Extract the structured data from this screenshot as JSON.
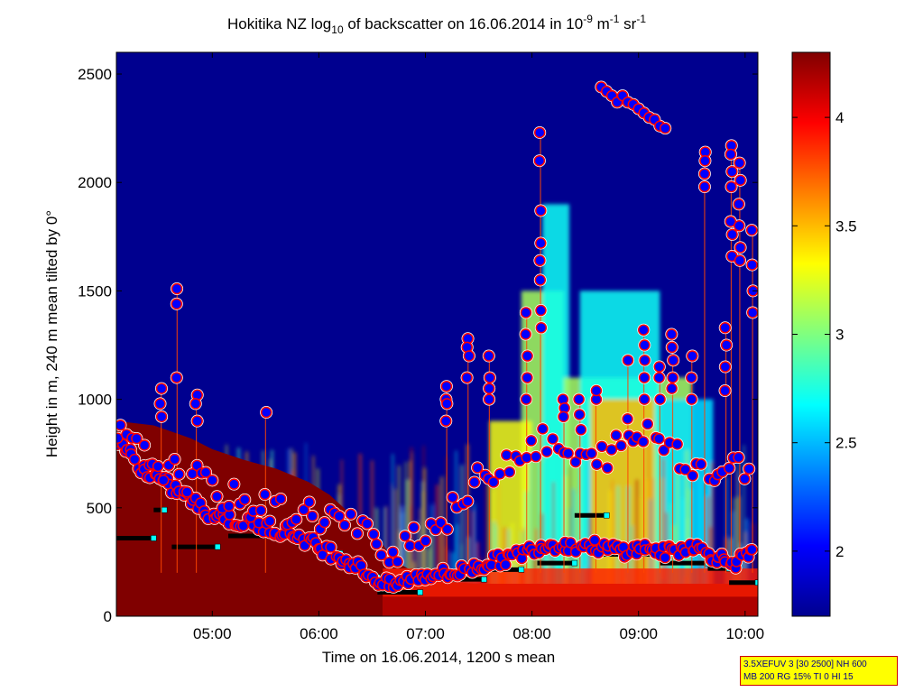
{
  "chart_data": {
    "type": "heatmap",
    "title": {
      "prefix": "Hokitika NZ log",
      "sub": "10",
      "middle": " of backscatter on 16.06.2014 in 10",
      "exp1": "-9",
      "unit1": " m",
      "exp2": "-1",
      "unit2": " sr",
      "exp3": "-1"
    },
    "xlabel": "Time on 16.06.2014, 1200 s mean",
    "ylabel": "Height in m, 240 m mean tilted by 0°",
    "x_ticks": [
      "05:00",
      "06:00",
      "07:00",
      "08:00",
      "09:00",
      "10:00"
    ],
    "x_tick_values": [
      5,
      6,
      7,
      8,
      9,
      10
    ],
    "xlim": [
      4.1,
      10.12
    ],
    "y_ticks": [
      "0",
      "500",
      "1000",
      "1500",
      "2000",
      "2500"
    ],
    "y_tick_values": [
      0,
      500,
      1000,
      1500,
      2000,
      2500
    ],
    "ylim": [
      0,
      2600
    ],
    "colorbar": {
      "ticks": [
        "2",
        "2.5",
        "3",
        "3.5",
        "4"
      ],
      "tick_values": [
        2,
        2.5,
        3,
        3.5,
        4
      ],
      "range": [
        1.7,
        4.3
      ],
      "colormap": "jet"
    },
    "colors": {
      "background": "#00008f",
      "max": "#800000",
      "cloud_base_marker": "#0000ff",
      "marker_ring": "#ffffff",
      "marker_edge": "#ff0000",
      "mixing_layer": "#000000",
      "mixing_layer_marker": "#00ffff"
    },
    "surface_layer": [
      [
        4.1,
        900
      ],
      [
        4.45,
        880
      ],
      [
        4.8,
        820
      ],
      [
        5.0,
        770
      ],
      [
        5.3,
        720
      ],
      [
        5.6,
        680
      ],
      [
        5.9,
        620
      ],
      [
        6.1,
        560
      ],
      [
        6.3,
        470
      ],
      [
        6.5,
        400
      ],
      [
        6.7,
        260
      ],
      [
        6.9,
        200
      ],
      [
        7.1,
        160
      ],
      [
        7.5,
        150
      ],
      [
        10.12,
        150
      ]
    ],
    "mixing_layer_height": [
      {
        "x0": 4.1,
        "x1": 4.45,
        "y": 360
      },
      {
        "x0": 4.45,
        "x1": 4.55,
        "y": 490
      },
      {
        "x0": 4.62,
        "x1": 5.05,
        "y": 320
      },
      {
        "x0": 5.15,
        "x1": 5.8,
        "y": 370
      },
      {
        "x0": 5.8,
        "x1": 6.05,
        "y": 330
      },
      {
        "x0": 6.05,
        "x1": 6.2,
        "y": 290
      },
      {
        "x0": 6.2,
        "x1": 6.4,
        "y": 240
      },
      {
        "x0": 6.4,
        "x1": 6.55,
        "y": 180
      },
      {
        "x0": 6.55,
        "x1": 6.95,
        "y": 110
      },
      {
        "x0": 6.95,
        "x1": 7.55,
        "y": 170
      },
      {
        "x0": 7.55,
        "x1": 7.9,
        "y": 215
      },
      {
        "x0": 7.9,
        "x1": 8.05,
        "y": 290
      },
      {
        "x0": 8.05,
        "x1": 8.4,
        "y": 245
      },
      {
        "x0": 8.4,
        "x1": 8.7,
        "y": 465
      },
      {
        "x0": 8.65,
        "x1": 9.2,
        "y": 285
      },
      {
        "x0": 9.2,
        "x1": 9.65,
        "y": 245
      },
      {
        "x0": 9.65,
        "x1": 9.85,
        "y": 220
      },
      {
        "x0": 9.85,
        "x1": 10.12,
        "y": 155
      }
    ],
    "cloud_tracks": [
      {
        "points": [
          [
            4.1,
            820
          ],
          [
            4.2,
            760
          ],
          [
            4.3,
            700
          ],
          [
            4.4,
            660
          ],
          [
            4.5,
            630
          ],
          [
            4.6,
            600
          ],
          [
            4.7,
            570
          ],
          [
            4.8,
            540
          ],
          [
            4.9,
            500
          ],
          [
            5.0,
            470
          ],
          [
            5.1,
            460
          ],
          [
            5.2,
            440
          ],
          [
            5.3,
            430
          ],
          [
            5.4,
            420
          ],
          [
            5.5,
            410
          ],
          [
            5.6,
            400
          ],
          [
            5.7,
            390
          ],
          [
            5.8,
            370
          ],
          [
            5.9,
            350
          ],
          [
            6.0,
            320
          ],
          [
            6.1,
            300
          ],
          [
            6.2,
            270
          ],
          [
            6.3,
            250
          ],
          [
            6.4,
            220
          ],
          [
            6.5,
            180
          ],
          [
            6.6,
            150
          ],
          [
            6.7,
            140
          ],
          [
            6.8,
            160
          ],
          [
            6.9,
            180
          ],
          [
            7.0,
            190
          ],
          [
            7.1,
            200
          ],
          [
            7.2,
            190
          ],
          [
            7.3,
            200
          ],
          [
            7.4,
            220
          ],
          [
            7.5,
            230
          ],
          [
            7.6,
            250
          ],
          [
            7.7,
            260
          ],
          [
            7.8,
            270
          ],
          [
            7.9,
            290
          ],
          [
            8.0,
            310
          ],
          [
            8.1,
            330
          ],
          [
            8.2,
            330
          ],
          [
            8.3,
            330
          ],
          [
            8.4,
            320
          ],
          [
            8.5,
            330
          ],
          [
            8.6,
            320
          ],
          [
            8.7,
            310
          ],
          [
            8.8,
            310
          ],
          [
            8.9,
            300
          ],
          [
            9.0,
            310
          ],
          [
            9.1,
            320
          ],
          [
            9.2,
            290
          ],
          [
            9.3,
            300
          ],
          [
            9.4,
            310
          ],
          [
            9.5,
            330
          ],
          [
            9.6,
            300
          ],
          [
            9.7,
            280
          ],
          [
            9.8,
            260
          ],
          [
            9.9,
            250
          ],
          [
            10.0,
            270
          ],
          [
            10.1,
            290
          ]
        ],
        "jitter": 60
      },
      {
        "points": [
          [
            4.1,
            850
          ],
          [
            4.3,
            760
          ],
          [
            4.5,
            700
          ],
          [
            4.7,
            650
          ],
          [
            4.9,
            620
          ],
          [
            5.1,
            560
          ],
          [
            5.3,
            520
          ],
          [
            5.5,
            500
          ],
          [
            5.7,
            480
          ],
          [
            5.9,
            470
          ],
          [
            6.1,
            460
          ],
          [
            6.3,
            420
          ],
          [
            6.5,
            350
          ],
          [
            6.7,
            300
          ],
          [
            6.9,
            380
          ],
          [
            7.1,
            420
          ],
          [
            7.3,
            500
          ],
          [
            7.5,
            620
          ],
          [
            7.7,
            700
          ],
          [
            7.9,
            760
          ],
          [
            8.1,
            800
          ],
          [
            8.3,
            750
          ],
          [
            8.5,
            700
          ],
          [
            8.7,
            750
          ],
          [
            8.9,
            800
          ],
          [
            9.1,
            850
          ],
          [
            9.3,
            800
          ],
          [
            9.5,
            700
          ],
          [
            9.7,
            650
          ],
          [
            9.9,
            700
          ],
          [
            10.1,
            600
          ]
        ],
        "jitter": 140
      }
    ],
    "cloud_spikes": [
      {
        "x": 4.52,
        "ys": [
          1050,
          980,
          920
        ]
      },
      {
        "x": 4.67,
        "ys": [
          1510,
          1440,
          1100
        ]
      },
      {
        "x": 4.85,
        "ys": [
          1020,
          980,
          900
        ]
      },
      {
        "x": 5.5,
        "ys": [
          940
        ]
      },
      {
        "x": 7.2,
        "ys": [
          900,
          1000,
          1060,
          980
        ]
      },
      {
        "x": 7.4,
        "ys": [
          1280,
          1240,
          1200,
          1100
        ]
      },
      {
        "x": 7.6,
        "ys": [
          1200,
          1100,
          1050,
          1000
        ]
      },
      {
        "x": 7.95,
        "ys": [
          1400,
          1300,
          1200,
          1100,
          1000
        ]
      },
      {
        "x": 8.08,
        "ys": [
          2230,
          2100,
          1870,
          1720,
          1640,
          1550,
          1410,
          1330
        ]
      },
      {
        "x": 8.3,
        "ys": [
          1000,
          960,
          920
        ]
      },
      {
        "x": 8.45,
        "ys": [
          1000,
          930,
          860
        ]
      },
      {
        "x": 8.6,
        "ys": [
          1000,
          1040
        ]
      },
      {
        "x": 8.9,
        "ys": [
          910,
          1180
        ]
      },
      {
        "x": 9.05,
        "ys": [
          1320,
          1250,
          1180,
          1100,
          1000
        ]
      },
      {
        "x": 9.2,
        "ys": [
          1150,
          1100,
          1000
        ]
      },
      {
        "x": 9.32,
        "ys": [
          1300,
          1240,
          1180,
          1100,
          1050
        ]
      },
      {
        "x": 9.5,
        "ys": [
          1200,
          1100,
          1000
        ]
      },
      {
        "x": 9.62,
        "ys": [
          2140,
          2100,
          2040,
          1980
        ]
      },
      {
        "x": 9.82,
        "ys": [
          1330,
          1250,
          1150,
          1040
        ]
      },
      {
        "x": 9.87,
        "ys": [
          2170,
          2130,
          2050,
          1980,
          1820,
          1760,
          1660
        ]
      },
      {
        "x": 9.95,
        "ys": [
          2090,
          2010,
          1900,
          1800,
          1700,
          1640
        ]
      },
      {
        "x": 10.07,
        "ys": [
          1780,
          1620,
          1500,
          1400
        ]
      }
    ],
    "upper_layer": [
      [
        8.65,
        2440
      ],
      [
        8.7,
        2420
      ],
      [
        8.75,
        2400
      ],
      [
        8.8,
        2370
      ],
      [
        8.85,
        2400
      ],
      [
        8.9,
        2370
      ],
      [
        8.95,
        2360
      ],
      [
        9.0,
        2340
      ],
      [
        9.05,
        2320
      ],
      [
        9.1,
        2300
      ],
      [
        9.15,
        2290
      ],
      [
        9.2,
        2260
      ],
      [
        9.25,
        2250
      ]
    ],
    "plumes": [
      {
        "x0": 7.9,
        "x1": 8.3,
        "top": 1500,
        "level": 3.1
      },
      {
        "x0": 8.1,
        "x1": 8.35,
        "top": 1900,
        "level": 2.7
      },
      {
        "x0": 8.3,
        "x1": 9.5,
        "top": 1100,
        "level": 3.1
      },
      {
        "x0": 8.45,
        "x1": 9.2,
        "top": 1500,
        "level": 2.7
      },
      {
        "x0": 8.55,
        "x1": 9.15,
        "top": 1000,
        "level": 3.5
      },
      {
        "x0": 9.2,
        "x1": 9.7,
        "top": 1000,
        "level": 2.6
      },
      {
        "x0": 7.6,
        "x1": 8.0,
        "top": 900,
        "level": 3.3
      }
    ]
  },
  "info_box": {
    "line1": "3.5XEFUV 3 [30 2500] NH 600",
    "line2": "MB 200 RG 15% TI 0 HI 15"
  }
}
